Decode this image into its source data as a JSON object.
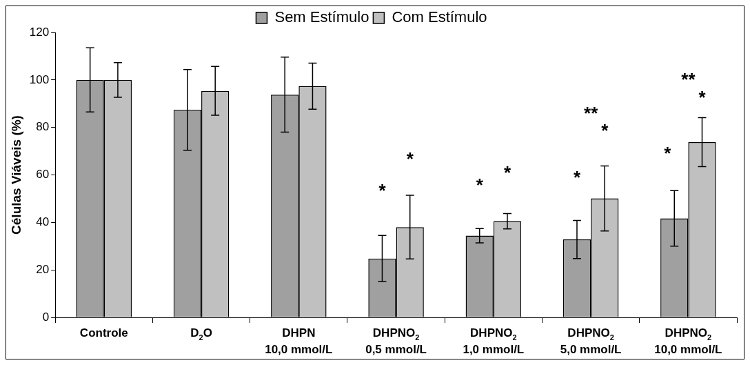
{
  "chart_data": {
    "type": "bar",
    "ylabel": "Células Viáveis (%)",
    "categories": [
      "Controle",
      "D$_{2}$O",
      "DHPN\n10,0 mmol/L",
      "DHPNO$_{2}$\n0,5 mmol/L",
      "DHPNO$_{2}$\n1,0 mmol/L",
      "DHPNO$_{2}$\n5,0 mmol/L",
      "DHPNO$_{2}$\n10,0 mmol/L"
    ],
    "series": [
      {
        "name": "Sem Estímulo",
        "color": "#a0a0a0",
        "values": [
          100,
          87.4,
          93.8,
          24.8,
          34.4,
          32.8,
          41.7
        ],
        "errors": [
          13.5,
          17,
          15.8,
          9.7,
          3,
          8,
          11.7
        ]
      },
      {
        "name": "Com Estímulo",
        "color": "#c0c0c0",
        "values": [
          100,
          95.4,
          97.4,
          38,
          40.5,
          50.1,
          73.8
        ],
        "errors": [
          7.3,
          10.3,
          9.7,
          13.4,
          3.2,
          13.7,
          10.3
        ]
      }
    ],
    "ylim": [
      0,
      120
    ],
    "yticks": [
      0,
      20,
      40,
      60,
      80,
      100,
      120
    ],
    "grid": false,
    "legend": "top",
    "annotations": [
      "*",
      "*",
      "*",
      "*",
      "*",
      "**",
      "*",
      "*",
      "**",
      "*"
    ]
  }
}
